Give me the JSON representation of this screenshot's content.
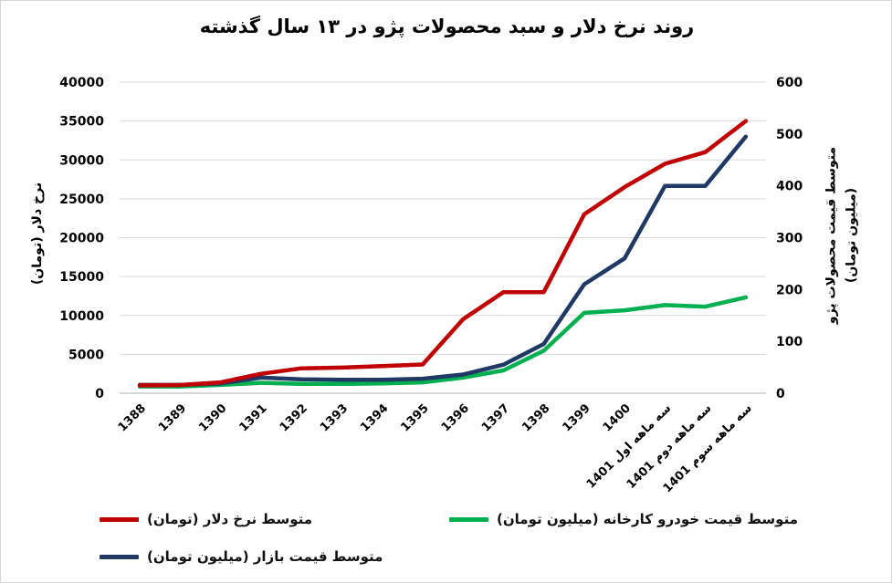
{
  "title": "روند نرخ دلار و سبد محصولات پژو در ۱۳ سال گذشته",
  "colors": {
    "grid": "#D9D9D9",
    "axis_line": "#BFBFBF",
    "text": "#000000",
    "background": "#FFFFFF"
  },
  "chart_data": {
    "type": "line",
    "grid": "horizontal",
    "legend_position": "bottom",
    "categories": [
      "1388",
      "1389",
      "1390",
      "1391",
      "1392",
      "1393",
      "1394",
      "1395",
      "1396",
      "1397",
      "1398",
      "1399",
      "1400",
      "سه ماهه اول 1401",
      "سه ماهه دوم 1401",
      "سه ماهه سوم 1401"
    ],
    "left_axis": {
      "label": "نرخ دلار (تومان)",
      "min": 0,
      "max": 40000,
      "step": 5000,
      "ticks": [
        0,
        5000,
        10000,
        15000,
        20000,
        25000,
        30000,
        35000,
        40000
      ]
    },
    "right_axis": {
      "label_line1": "متوسط قیمت محصولات پژو",
      "label_line2": "(میلیون تومان)",
      "min": 0,
      "max": 600,
      "step": 100,
      "ticks": [
        0,
        100,
        200,
        300,
        400,
        500,
        600
      ]
    },
    "series": [
      {
        "name": "متوسط نرخ دلار (تومان)",
        "axis": "left",
        "color": "#C00000",
        "values": [
          1000,
          1050,
          1400,
          2500,
          3200,
          3300,
          3500,
          3700,
          9500,
          13000,
          13000,
          23000,
          26500,
          29500,
          31000,
          35000
        ]
      },
      {
        "name": "متوسط قیمت خودرو کارخانه (میلیون تومان)",
        "axis": "right",
        "color": "#00B050",
        "values": [
          13,
          13,
          16,
          20,
          18,
          18,
          19,
          21,
          30,
          44,
          82,
          155,
          160,
          170,
          167,
          185
        ]
      },
      {
        "name": "متوسط قیمت بازار (میلیون تومان)",
        "axis": "right",
        "color": "#1F3864",
        "values": [
          16,
          16,
          19,
          30,
          27,
          26,
          26,
          28,
          36,
          55,
          95,
          210,
          260,
          400,
          400,
          495
        ]
      }
    ]
  }
}
